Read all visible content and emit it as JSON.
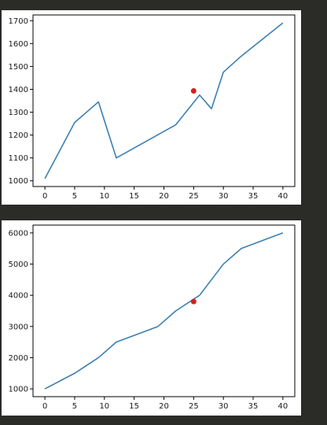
{
  "chart_data": [
    {
      "type": "line",
      "x": [
        0,
        5,
        9,
        12,
        22,
        26,
        28,
        30,
        33,
        40
      ],
      "series": [
        {
          "values": [
            1010,
            1255,
            1345,
            1100,
            1245,
            1375,
            1315,
            1475,
            1545,
            1690
          ]
        }
      ],
      "highlight_point": {
        "x": 25,
        "y": 1393
      },
      "xlim": [
        -2,
        42
      ],
      "ylim": [
        975,
        1725
      ],
      "xticks": [
        0,
        5,
        10,
        15,
        20,
        25,
        30,
        35,
        40
      ],
      "yticks": [
        1000,
        1100,
        1200,
        1300,
        1400,
        1500,
        1600,
        1700
      ],
      "title": "",
      "xlabel": "",
      "ylabel": "",
      "grid": false,
      "line_color": "#3c7fb1",
      "point_color": "#d62020"
    },
    {
      "type": "line",
      "x": [
        0,
        5,
        9,
        12,
        19,
        22,
        26,
        30,
        33,
        40
      ],
      "series": [
        {
          "values": [
            1000,
            1500,
            2000,
            2500,
            3000,
            3500,
            4000,
            5000,
            5500,
            6000
          ]
        }
      ],
      "highlight_point": {
        "x": 25,
        "y": 3800
      },
      "xlim": [
        -2,
        42
      ],
      "ylim": [
        750,
        6250
      ],
      "xticks": [
        0,
        5,
        10,
        15,
        20,
        25,
        30,
        35,
        40
      ],
      "yticks": [
        1000,
        2000,
        3000,
        4000,
        5000,
        6000
      ],
      "title": "",
      "xlabel": "",
      "ylabel": "",
      "grid": false,
      "line_color": "#3c7fb1",
      "point_color": "#d62020"
    }
  ]
}
